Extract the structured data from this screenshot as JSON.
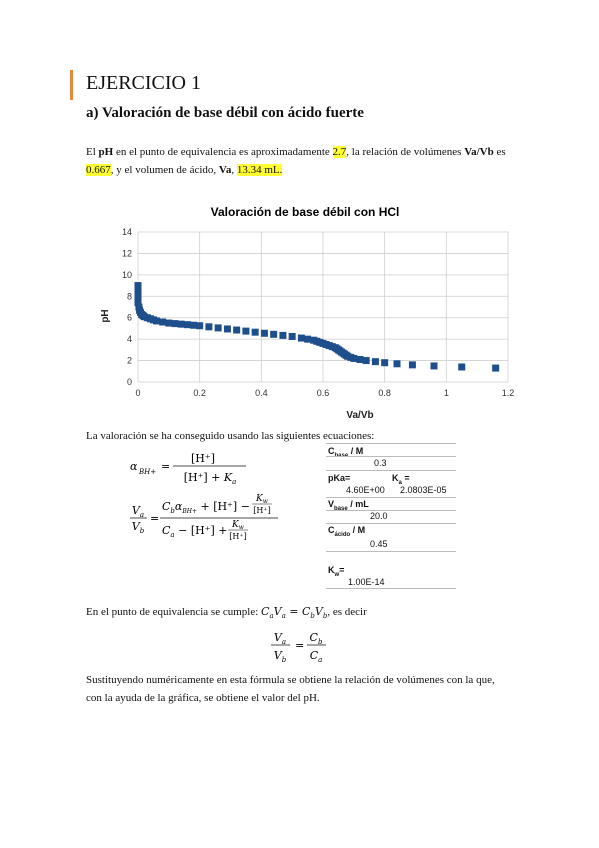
{
  "heading": "EJERCICIO 1",
  "subheading": "a)  Valoración de base débil con ácido fuerte",
  "intro": {
    "part1": "El ",
    "ph": "pH",
    "part2": " en el punto de equivalencia es aproximadamente ",
    "ph_value": "2.7",
    "part3": ", la relación de volúmenes ",
    "ratio_label": "Va/Vb",
    "part4": " es",
    "ratio_value": "0.667",
    "part5": ", y el volumen de ácido, ",
    "va": "Va",
    "part6": ", ",
    "va_value": "13.34 mL."
  },
  "chart_data": {
    "type": "scatter",
    "title": "Valoración de base débil con HCl",
    "xlabel": "Va/Vb",
    "ylabel": "pH",
    "xlim": [
      0,
      1.2
    ],
    "ylim": [
      0,
      14
    ],
    "xticks": [
      "0",
      "0.2",
      "0.4",
      "0.6",
      "0.8",
      "1",
      "1.2"
    ],
    "yticks": [
      "0",
      "2",
      "4",
      "6",
      "8",
      "10",
      "12",
      "14"
    ],
    "color": "#1f4e8c",
    "x": [
      0,
      0,
      0,
      0,
      0,
      0.003,
      0.005,
      0.008,
      0.012,
      0.016,
      0.02,
      0.03,
      0.04,
      0.05,
      0.06,
      0.08,
      0.1,
      0.12,
      0.14,
      0.16,
      0.18,
      0.2,
      0.23,
      0.26,
      0.29,
      0.32,
      0.35,
      0.38,
      0.41,
      0.44,
      0.47,
      0.5,
      0.53,
      0.55,
      0.57,
      0.58,
      0.59,
      0.6,
      0.61,
      0.62,
      0.63,
      0.64,
      0.645,
      0.65,
      0.655,
      0.66,
      0.665,
      0.67,
      0.675,
      0.68,
      0.69,
      0.7,
      0.72,
      0.74,
      0.77,
      0.8,
      0.84,
      0.89,
      0.96,
      1.05,
      1.16
    ],
    "y": [
      9.0,
      8.6,
      8.2,
      7.8,
      7.4,
      7.0,
      6.7,
      6.5,
      6.3,
      6.2,
      6.1,
      6.0,
      5.9,
      5.8,
      5.7,
      5.6,
      5.5,
      5.45,
      5.4,
      5.35,
      5.3,
      5.25,
      5.15,
      5.05,
      4.95,
      4.85,
      4.75,
      4.65,
      4.55,
      4.45,
      4.35,
      4.25,
      4.1,
      4.0,
      3.9,
      3.8,
      3.7,
      3.6,
      3.5,
      3.4,
      3.3,
      3.2,
      3.1,
      3.0,
      2.9,
      2.8,
      2.7,
      2.6,
      2.5,
      2.4,
      2.3,
      2.2,
      2.1,
      2.0,
      1.9,
      1.8,
      1.7,
      1.6,
      1.5,
      1.4,
      1.3
    ],
    "grid": true,
    "legend": "none"
  },
  "eqs_intro": "La valoración se ha conseguido usando las siguientes ecuaciones:",
  "table": {
    "cbase_label": "C",
    "cbase_sub": "base",
    "cbase_unit": " / M",
    "cbase_value": "0.3",
    "pka_label": "pKa=",
    "pka_value": "4.60E+00",
    "ka_label": "K",
    "ka_sub": "a",
    "ka_eq": " =",
    "ka_value": "2.0803E-05",
    "vbase_label": "V",
    "vbase_sub": "base",
    "vbase_unit": " / mL",
    "vbase_value": "20.0",
    "cacido_label": "C",
    "cacido_sub": "ácido",
    "cacido_unit": " / M",
    "cacido_value": "0.45",
    "kw_label": "K",
    "kw_sub": "w",
    "kw_eq": "=",
    "kw_value": "1.00E-14"
  },
  "equiv_text": "En el punto de equivalencia se cumple: ",
  "equiv_text_end": ", es decir",
  "final_text_1": "Sustituyendo numéricamente en esta fórmula se obtiene la relación de volúmenes con la que,",
  "final_text_2": "con la ayuda de la gráfica, se obtiene el valor del pH."
}
